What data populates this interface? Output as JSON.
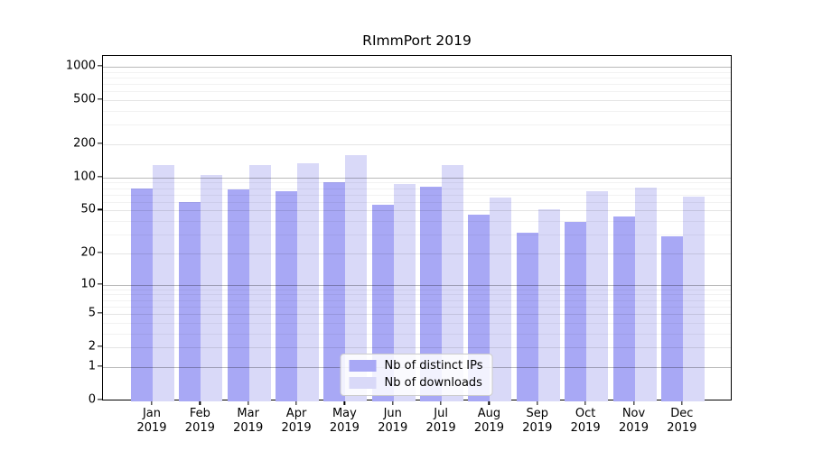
{
  "chart_data": {
    "type": "bar",
    "title": "RImmPort 2019",
    "x": {
      "categories": [
        "Jan",
        "Feb",
        "Mar",
        "Apr",
        "May",
        "Jun",
        "Jul",
        "Aug",
        "Sep",
        "Oct",
        "Nov",
        "Dec"
      ],
      "year": "2019"
    },
    "series": [
      {
        "name": "Nb of distinct IPs",
        "color": "#a8a8f5",
        "values": [
          80,
          60,
          78,
          75,
          90,
          57,
          83,
          46,
          31,
          39,
          44,
          29
        ]
      },
      {
        "name": "Nb of downloads",
        "color": "#d9d9f8",
        "values": [
          130,
          105,
          131,
          136,
          161,
          87,
          131,
          66,
          51,
          75,
          81,
          67
        ]
      }
    ],
    "yscale": "log1p",
    "yticks": [
      0,
      1,
      2,
      5,
      10,
      20,
      50,
      100,
      200,
      500,
      1000
    ],
    "minor_yticks": [
      3,
      4,
      6,
      7,
      8,
      9,
      30,
      40,
      60,
      70,
      80,
      90,
      300,
      400,
      600,
      700,
      800,
      900
    ],
    "decade_yticks": [
      1,
      10,
      100,
      1000
    ],
    "ylim": [
      0,
      1260
    ],
    "grid": true,
    "legend_position": "lower center",
    "colors": {
      "spine": "#000000",
      "decade_grid": "rgba(0,0,0,0.27)",
      "major_grid": "rgba(0,0,0,0.10)",
      "minor_grid": "rgba(0,0,0,0.05)"
    }
  }
}
